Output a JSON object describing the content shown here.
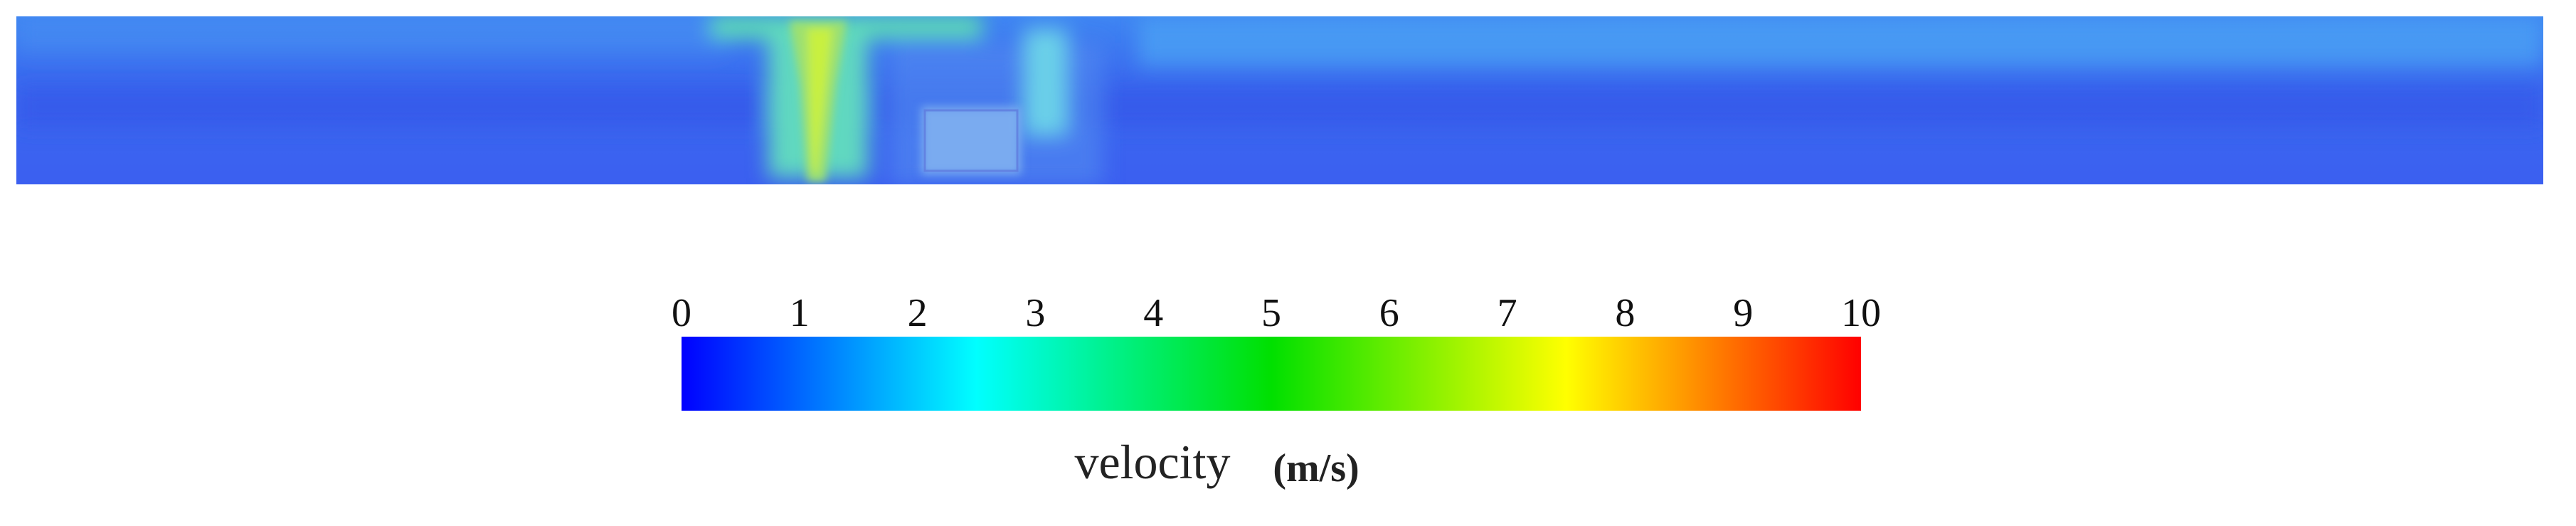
{
  "colorbar": {
    "range": [
      0,
      10
    ],
    "ticks": [
      0,
      1,
      2,
      3,
      4,
      5,
      6,
      7,
      8,
      9,
      10
    ],
    "colors": [
      "#0000ff",
      "#00ffff",
      "#00e000",
      "#ffff00",
      "#ff0000"
    ],
    "label": "velocity",
    "unit": "(m/s)"
  }
}
